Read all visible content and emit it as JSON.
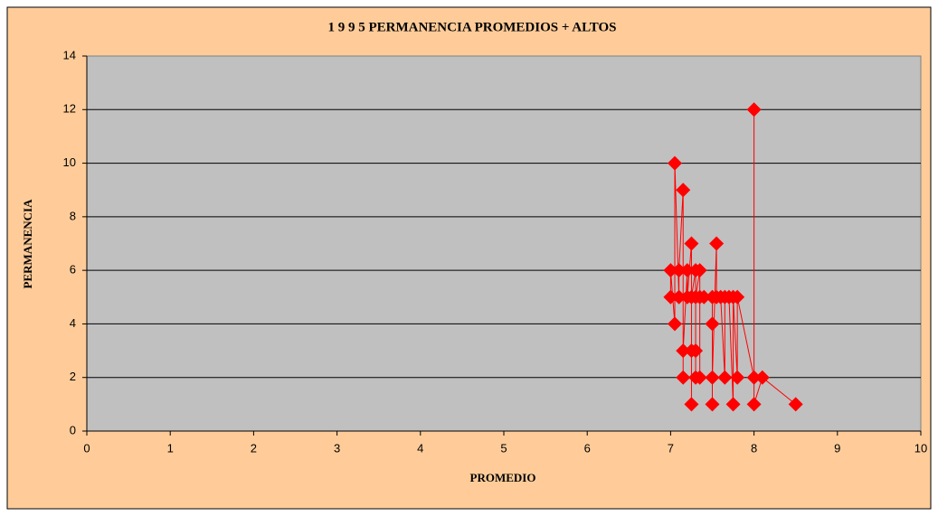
{
  "chart_data": {
    "type": "scatter",
    "title": "1 9 9 5 PERMANENCIA PROMEDIOS + ALTOS",
    "x_label": "PROMEDIO",
    "y_label": "PERMANENCIA",
    "x": [
      7.0,
      7.0,
      7.05,
      7.05,
      7.1,
      7.1,
      7.15,
      7.15,
      7.15,
      7.2,
      7.2,
      7.25,
      7.25,
      7.25,
      7.25,
      7.3,
      7.3,
      7.3,
      7.3,
      7.35,
      7.35,
      7.35,
      7.4,
      7.5,
      7.5,
      7.5,
      7.5,
      7.55,
      7.55,
      7.6,
      7.65,
      7.65,
      7.7,
      7.75,
      7.75,
      7.8,
      7.8,
      8.0,
      8.0,
      8.0,
      8.1,
      8.5
    ],
    "values": [
      5,
      6,
      4,
      10,
      5,
      6,
      9,
      2,
      3,
      6,
      5,
      7,
      1,
      3,
      5,
      6,
      2,
      3,
      5,
      6,
      2,
      5,
      5,
      5,
      4,
      1,
      2,
      7,
      5,
      5,
      2,
      5,
      5,
      1,
      5,
      2,
      5,
      2,
      12,
      1,
      2,
      1
    ],
    "color": "#ff0000",
    "xlim": [
      0,
      10
    ],
    "xticks": [
      0,
      1,
      2,
      3,
      4,
      5,
      6,
      7,
      8,
      9,
      10
    ],
    "ylim": [
      0,
      14
    ],
    "yticks": [
      0,
      2,
      4,
      6,
      8,
      10,
      12,
      14
    ],
    "grid": true
  }
}
